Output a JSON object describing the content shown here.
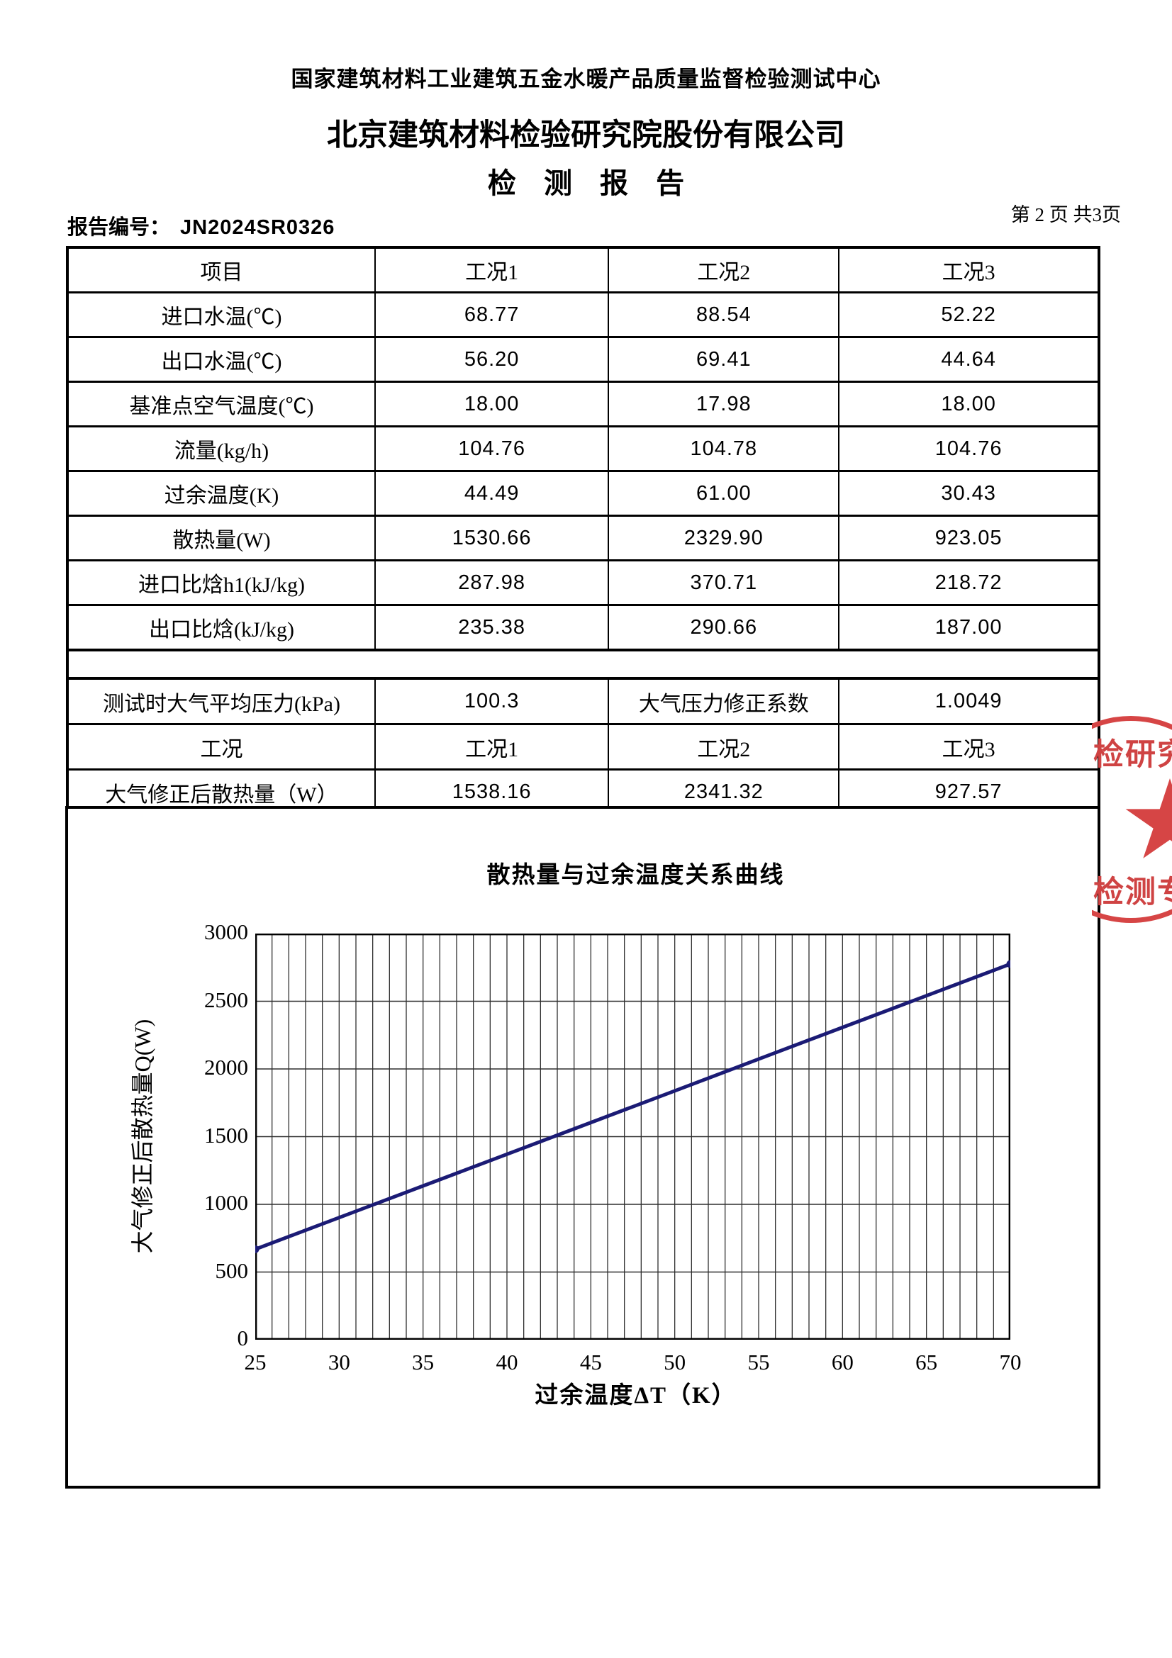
{
  "header": {
    "line1": "国家建筑材料工业建筑五金水暖产品质量监督检验测试中心",
    "line2": "北京建筑材料检验研究院股份有限公司",
    "title": "检 测 报 告"
  },
  "report_meta": {
    "report_no_label": "报告编号：",
    "report_no_value": "JN2024SR0326",
    "page_indicator": "第 2 页 共3页"
  },
  "results_table": {
    "header": [
      "项目",
      "工况1",
      "工况2",
      "工况3"
    ],
    "rows": [
      [
        "进口水温(℃)",
        "68.77",
        "88.54",
        "52.22"
      ],
      [
        "出口水温(℃)",
        "56.20",
        "69.41",
        "44.64"
      ],
      [
        "基准点空气温度(℃)",
        "18.00",
        "17.98",
        "18.00"
      ],
      [
        "流量(kg/h)",
        "104.76",
        "104.78",
        "104.76"
      ],
      [
        "过余温度(K)",
        "44.49",
        "61.00",
        "30.43"
      ],
      [
        "散热量(W)",
        "1530.66",
        "2329.90",
        "923.05"
      ],
      [
        "进口比焓h1(kJ/kg)",
        "287.98",
        "370.71",
        "218.72"
      ],
      [
        "出口比焓(kJ/kg)",
        "235.38",
        "290.66",
        "187.00"
      ]
    ]
  },
  "correction_table": {
    "rows": [
      [
        "测试时大气平均压力(kPa)",
        "100.3",
        "大气压力修正系数",
        "1.0049"
      ],
      [
        "工况",
        "工况1",
        "工况2",
        "工况3"
      ],
      [
        "大气修正后散热量（W）",
        "1538.16",
        "2341.32",
        "927.57"
      ]
    ]
  },
  "chart_data": {
    "type": "line",
    "title": "散热量与过余温度关系曲线",
    "xlabel": "过余温度ΔT（K）",
    "ylabel": "大气修正后散热量Q(W)",
    "xlim": [
      25,
      70
    ],
    "ylim": [
      0,
      3000
    ],
    "x_major_ticks": [
      25,
      30,
      35,
      40,
      45,
      50,
      55,
      60,
      65,
      70
    ],
    "x_minor_step": 1,
    "y_major_ticks": [
      0,
      500,
      1000,
      1500,
      2000,
      2500,
      3000
    ],
    "grid": "vertical minor lines every 1 K, horizontal lines every 500 W",
    "legend_position": "none",
    "marker": "dot at both line ends",
    "series": [
      {
        "name": "大气修正后散热量",
        "color": "#1b1b75",
        "x": [
          25,
          30,
          35,
          40,
          45,
          50,
          55,
          60,
          65,
          70
        ],
        "y": [
          668,
          902,
          1136,
          1370,
          1604,
          1838,
          2073,
          2307,
          2541,
          2775
        ]
      }
    ]
  },
  "stamp": {
    "color": "#d64545",
    "text_top": "检研究",
    "text_bottom": "检测专用",
    "star_icon": "red-star"
  }
}
